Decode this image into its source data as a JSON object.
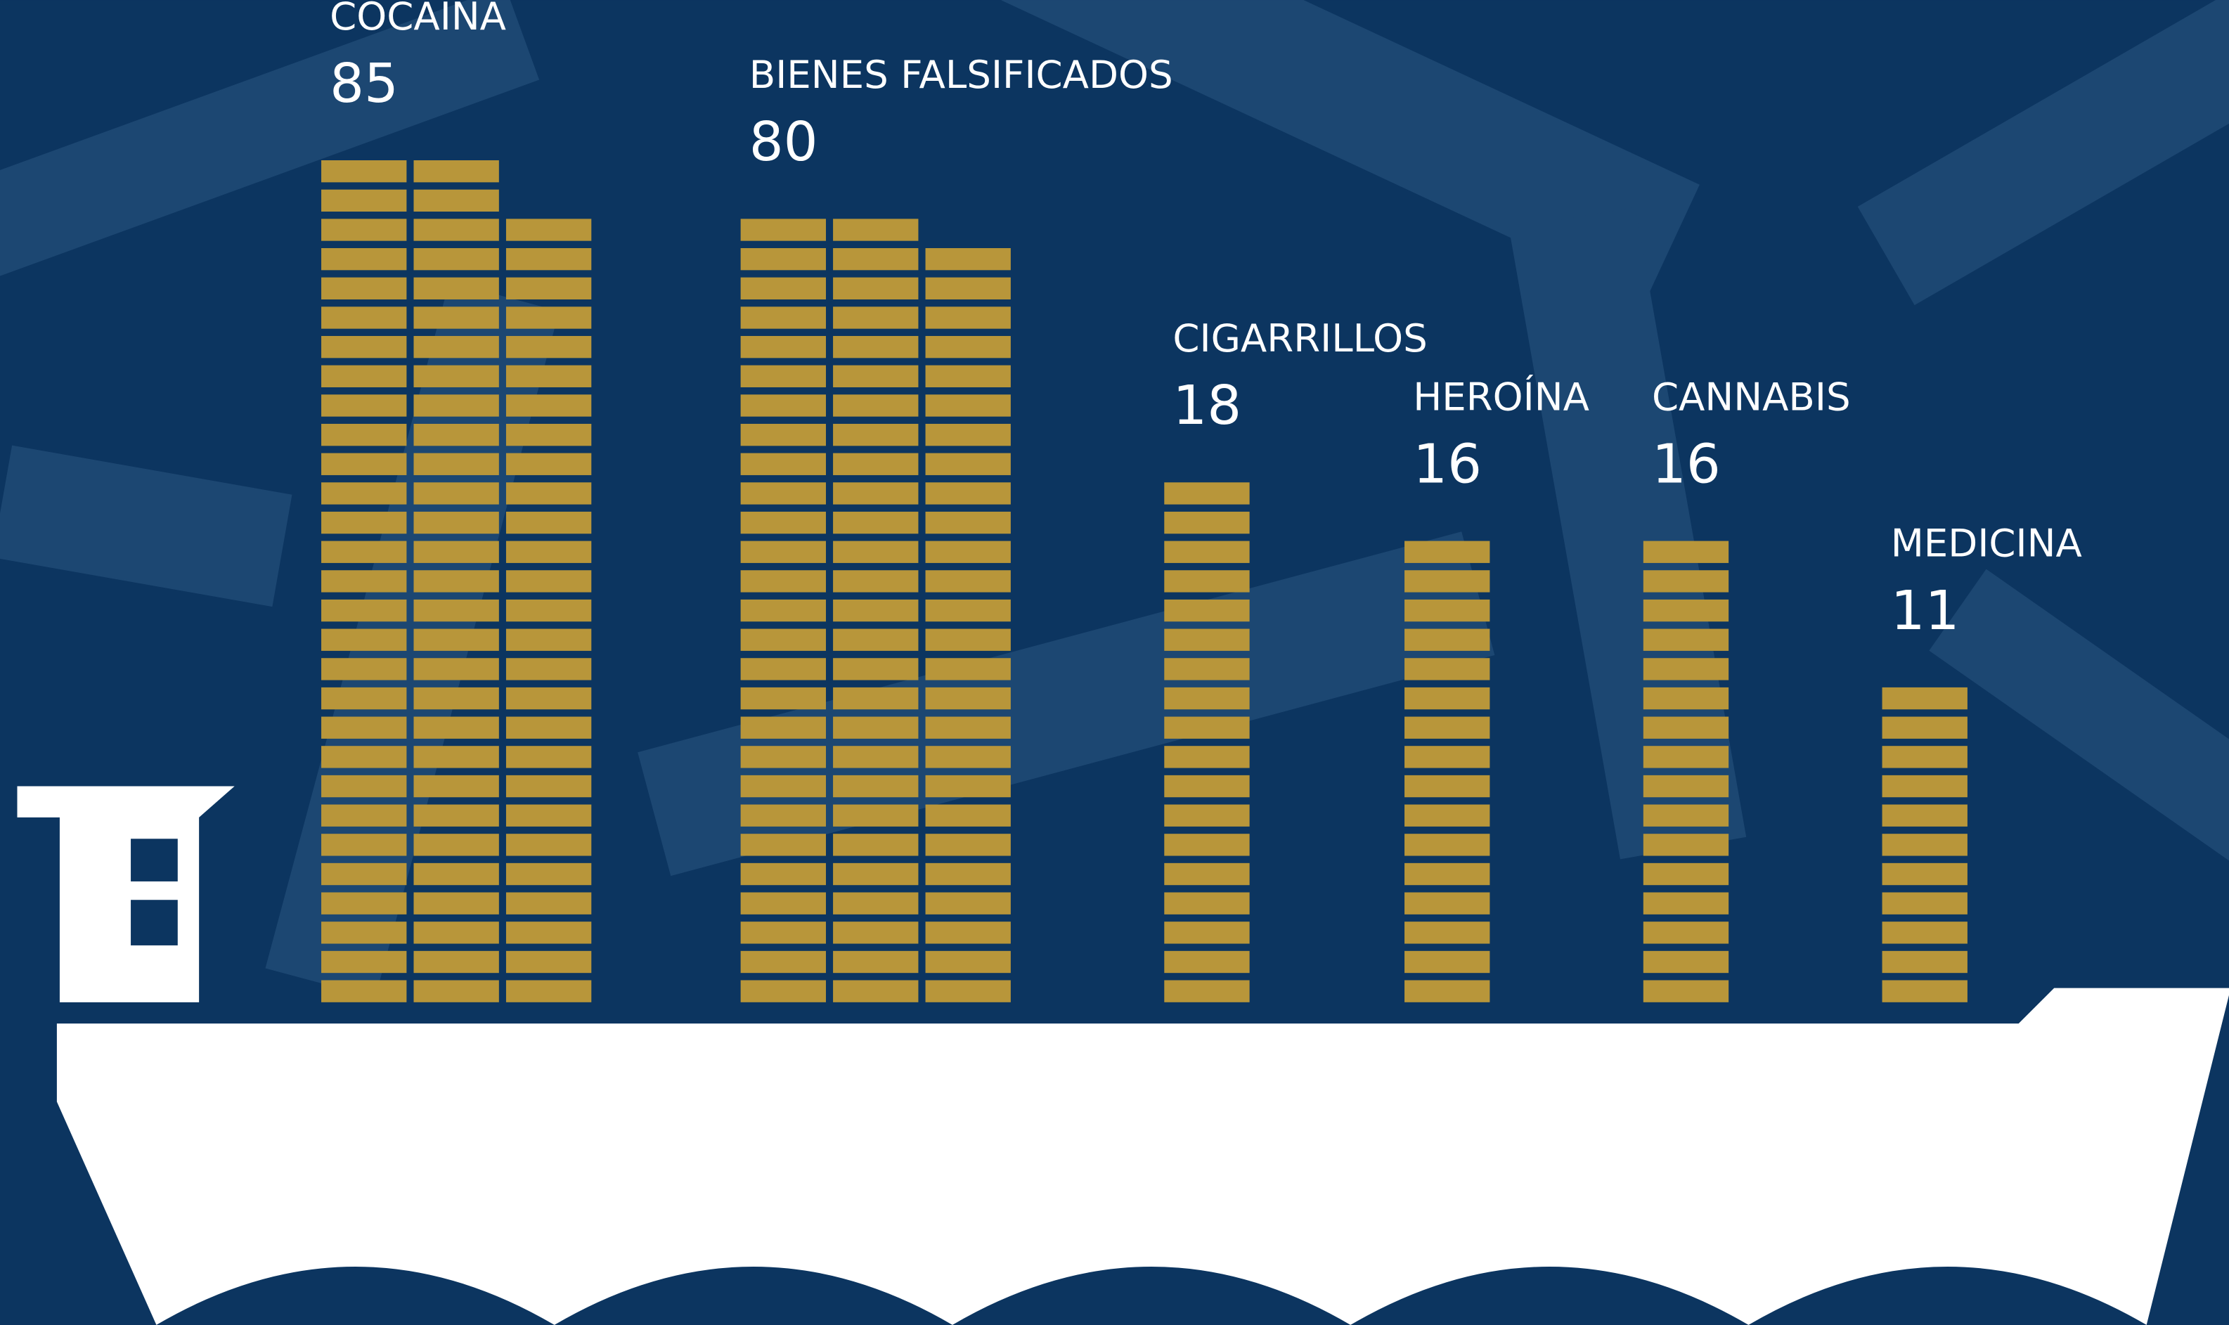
{
  "chart_data": {
    "type": "pictogram",
    "categories": [
      "COCAÍNA",
      "BIENES FALSIFICADOS",
      "CIGARRILLOS",
      "HEROÍNA",
      "CANNABIS",
      "MEDICINA"
    ],
    "values": [
      85,
      80,
      18,
      16,
      16,
      11
    ],
    "color": "#b8963a"
  }
}
